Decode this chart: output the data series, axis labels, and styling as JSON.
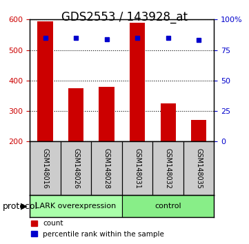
{
  "title": "GDS2553 / 143928_at",
  "categories": [
    "GSM148016",
    "GSM148026",
    "GSM148028",
    "GSM148031",
    "GSM148032",
    "GSM148035"
  ],
  "bar_values": [
    595,
    375,
    380,
    590,
    325,
    270
  ],
  "percentile_values": [
    85,
    85,
    84,
    85,
    85,
    83
  ],
  "bar_color": "#cc0000",
  "dot_color": "#0000cc",
  "ylim_left": [
    200,
    600
  ],
  "ylim_right": [
    0,
    100
  ],
  "yticks_left": [
    200,
    300,
    400,
    500,
    600
  ],
  "yticks_right": [
    0,
    25,
    50,
    75,
    100
  ],
  "yticklabels_right": [
    "0",
    "25",
    "50",
    "75",
    "100%"
  ],
  "group1_label": "LARK overexpression",
  "group2_label": "control",
  "group1_indices": [
    0,
    1,
    2
  ],
  "group2_indices": [
    3,
    4,
    5
  ],
  "group1_color": "#aaffaa",
  "group2_color": "#88ee88",
  "protocol_label": "protocol",
  "legend_count": "count",
  "legend_percentile": "percentile rank within the sample",
  "bar_width": 0.5,
  "grid_color": "#555555",
  "axis_bg": "#dddddd",
  "title_fontsize": 12,
  "tick_fontsize": 8,
  "label_fontsize": 9
}
